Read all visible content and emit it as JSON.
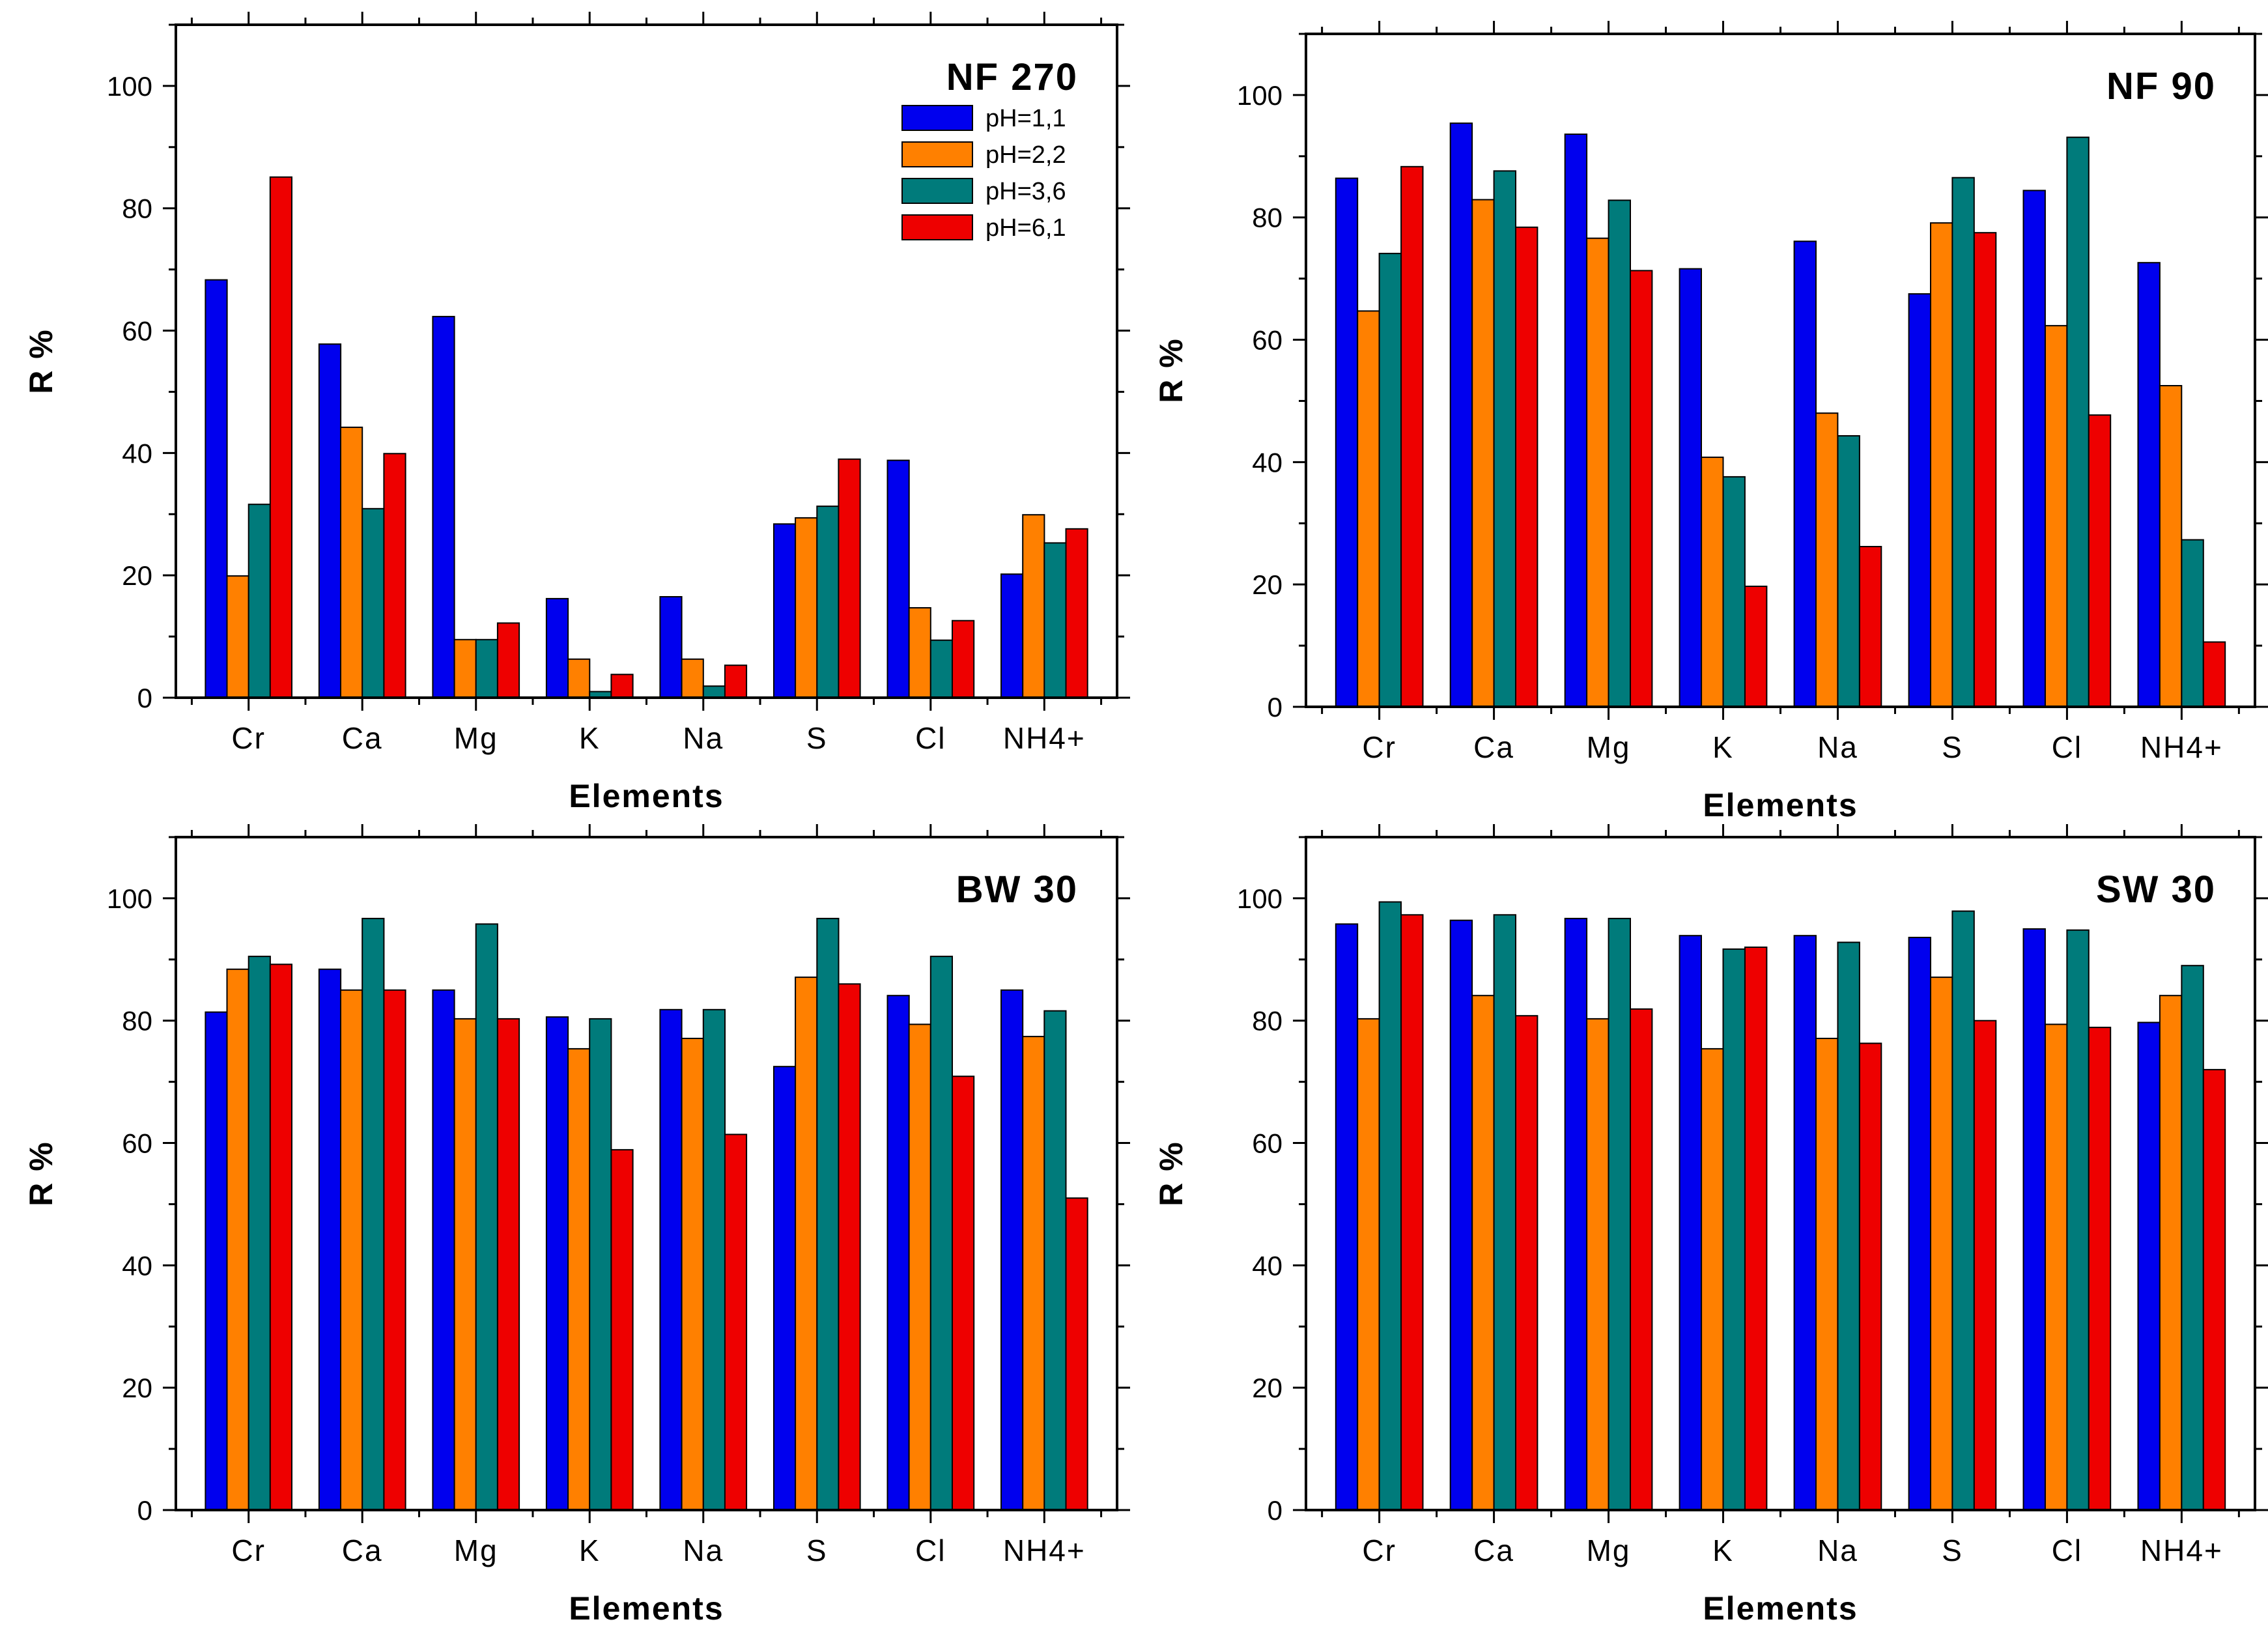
{
  "colors": {
    "series": [
      "#0000ee",
      "#ff8000",
      "#007b7b",
      "#ee0000"
    ],
    "edge": "#000000"
  },
  "chart_data": [
    {
      "type": "bar",
      "title": "NF 270",
      "xlabel": "Elements",
      "ylabel": "R %",
      "ylim": [
        0,
        110
      ],
      "yticks": [
        0,
        20,
        40,
        60,
        80,
        100
      ],
      "legend": "top-right",
      "categories": [
        "Cr",
        "Ca",
        "Mg",
        "K",
        "Na",
        "S",
        "Cl",
        "NH4+"
      ],
      "series": [
        {
          "name": "pH=1,1",
          "values": [
            68.3,
            57.8,
            62.3,
            16.2,
            16.5,
            28.4,
            38.8,
            20.2
          ]
        },
        {
          "name": "pH=2,2",
          "values": [
            19.9,
            44.2,
            9.5,
            6.3,
            6.3,
            29.4,
            14.7,
            29.9
          ]
        },
        {
          "name": "pH=3,6",
          "values": [
            31.6,
            30.9,
            9.5,
            1.0,
            1.9,
            31.3,
            9.4,
            25.3
          ]
        },
        {
          "name": "pH=6,1",
          "values": [
            85.1,
            39.9,
            12.2,
            3.8,
            5.3,
            39.0,
            12.6,
            27.6
          ]
        }
      ]
    },
    {
      "type": "bar",
      "title": "NF 90",
      "xlabel": "Elements",
      "ylabel": "R %",
      "ylim": [
        0,
        110
      ],
      "yticks": [
        0,
        20,
        40,
        60,
        80,
        100
      ],
      "categories": [
        "Cr",
        "Ca",
        "Mg",
        "K",
        "Na",
        "S",
        "Cl",
        "NH4+"
      ],
      "series": [
        {
          "name": "pH=1,1",
          "values": [
            86.4,
            95.4,
            93.6,
            71.6,
            76.1,
            67.5,
            84.4,
            72.6
          ]
        },
        {
          "name": "pH=2,2",
          "values": [
            64.7,
            82.9,
            76.6,
            40.8,
            48.0,
            79.1,
            62.3,
            52.5
          ]
        },
        {
          "name": "pH=3,6",
          "values": [
            74.1,
            87.6,
            82.8,
            37.6,
            44.3,
            86.5,
            93.1,
            27.3
          ]
        },
        {
          "name": "pH=6,1",
          "values": [
            88.3,
            78.4,
            71.3,
            19.7,
            26.2,
            77.5,
            47.7,
            10.6
          ]
        }
      ]
    },
    {
      "type": "bar",
      "title": "BW 30",
      "xlabel": "Elements",
      "ylabel": "R %",
      "ylim": [
        0,
        110
      ],
      "yticks": [
        0,
        20,
        40,
        60,
        80,
        100
      ],
      "categories": [
        "Cr",
        "Ca",
        "Mg",
        "K",
        "Na",
        "S",
        "Cl",
        "NH4+"
      ],
      "series": [
        {
          "name": "pH=1,1",
          "values": [
            81.4,
            88.4,
            85.0,
            80.6,
            81.8,
            72.5,
            84.1,
            85.0
          ]
        },
        {
          "name": "pH=2,2",
          "values": [
            88.4,
            85.0,
            80.3,
            75.4,
            77.1,
            87.1,
            79.4,
            77.4
          ]
        },
        {
          "name": "pH=3,6",
          "values": [
            90.5,
            96.7,
            95.8,
            80.3,
            81.8,
            96.7,
            90.5,
            81.6
          ]
        },
        {
          "name": "pH=6,1",
          "values": [
            89.2,
            85.0,
            80.3,
            58.9,
            61.4,
            86.0,
            70.9,
            51.0
          ]
        }
      ]
    },
    {
      "type": "bar",
      "title": "SW 30",
      "xlabel": "Elements",
      "ylabel": "R %",
      "ylim": [
        0,
        110
      ],
      "yticks": [
        0,
        20,
        40,
        60,
        80,
        100
      ],
      "categories": [
        "Cr",
        "Ca",
        "Mg",
        "K",
        "Na",
        "S",
        "Cl",
        "NH4+"
      ],
      "series": [
        {
          "name": "pH=1,1",
          "values": [
            95.8,
            96.4,
            96.7,
            93.9,
            93.9,
            93.6,
            95.0,
            79.7
          ]
        },
        {
          "name": "pH=2,2",
          "values": [
            80.3,
            84.1,
            80.3,
            75.4,
            77.1,
            87.1,
            79.4,
            84.1
          ]
        },
        {
          "name": "pH=3,6",
          "values": [
            99.4,
            97.3,
            96.7,
            91.7,
            92.8,
            97.9,
            94.8,
            89.0
          ]
        },
        {
          "name": "pH=6,1",
          "values": [
            97.3,
            80.8,
            81.9,
            92.0,
            76.3,
            80.0,
            78.9,
            72.0
          ]
        }
      ]
    }
  ]
}
